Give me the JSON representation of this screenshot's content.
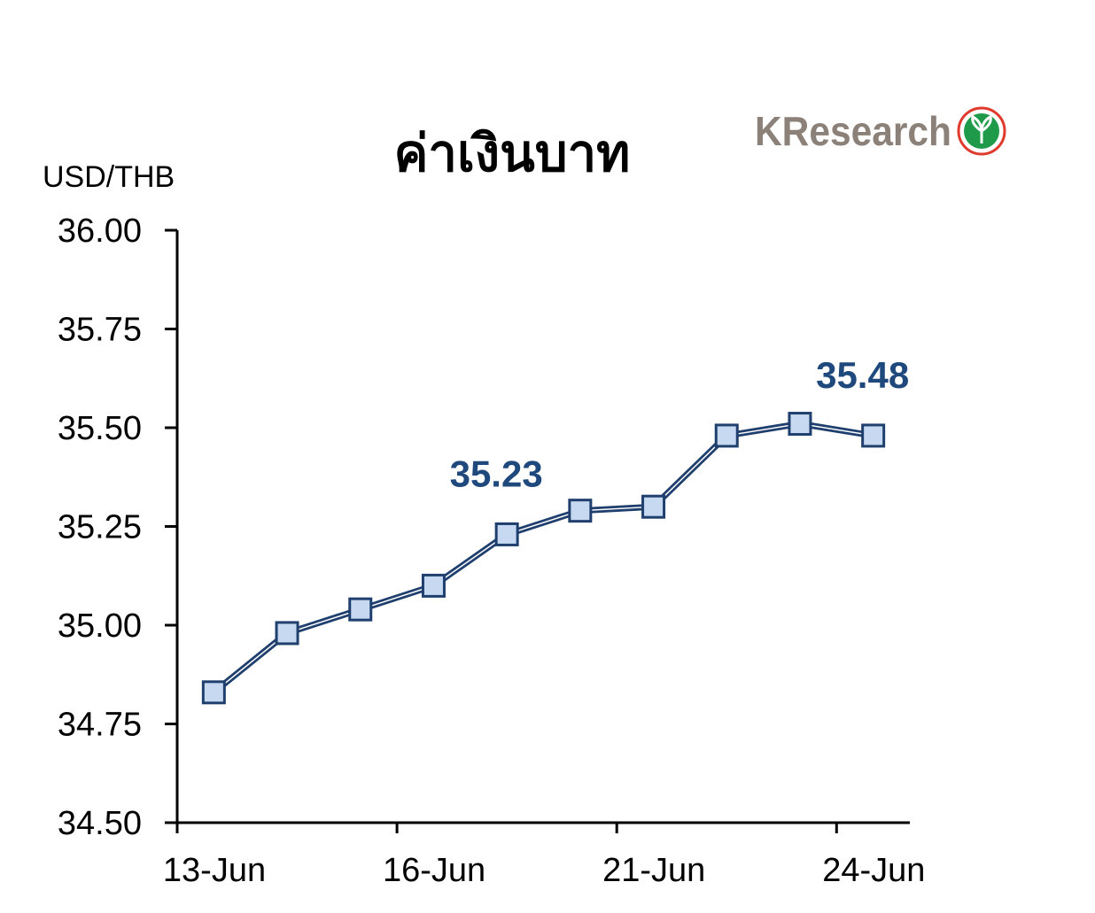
{
  "chart_data": {
    "type": "line",
    "title": "ค่าเงินบาท",
    "unit_label": "USD/THB",
    "ylim": [
      34.5,
      36.0
    ],
    "y_ticks": [
      "36.00",
      "35.75",
      "35.50",
      "35.25",
      "35.00",
      "34.75",
      "34.50"
    ],
    "x_tick_labels": [
      "13-Jun",
      "16-Jun",
      "21-Jun",
      "24-Jun"
    ],
    "grid": false,
    "legend": "none",
    "series": [
      {
        "values": [
          34.83,
          34.98,
          35.04,
          35.1,
          35.23,
          35.29,
          35.3,
          35.48,
          35.51,
          35.48
        ]
      }
    ],
    "annotations": [
      {
        "text": "35.23",
        "point_index": 4
      },
      {
        "text": "35.48",
        "point_index": 9
      }
    ],
    "colors": {
      "line": "#1f3f6e",
      "marker_fill": "#c6d9f0",
      "label": "#1f497d"
    }
  },
  "logo": {
    "text": "KResearch",
    "icon": "kasikorn-leaf-icon"
  }
}
